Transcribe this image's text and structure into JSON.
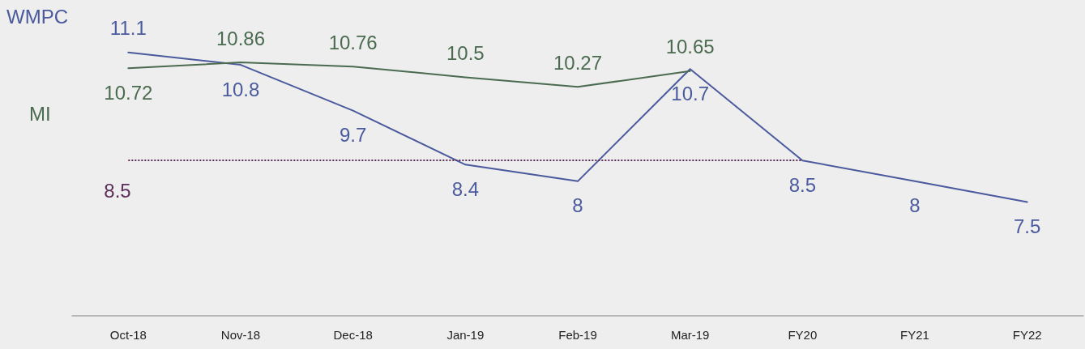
{
  "chart_data": {
    "type": "line",
    "categories": [
      "Oct-18",
      "Nov-18",
      "Dec-18",
      "Jan-19",
      "Feb-19",
      "Mar-19",
      "FY20",
      "FY21",
      "FY22"
    ],
    "series": [
      {
        "name": "WMPC",
        "color": "#4a5a9c",
        "values": [
          11.1,
          10.8,
          9.7,
          8.4,
          8,
          10.7,
          8.5,
          8,
          7.5
        ]
      },
      {
        "name": "MI",
        "color": "#4b6b50",
        "values": [
          10.72,
          10.86,
          10.76,
          10.5,
          10.27,
          10.65,
          null,
          null,
          null
        ]
      }
    ],
    "ref_lines": [
      {
        "axis": "y",
        "value": 8.5,
        "label": "8.5",
        "color": "#5b2d57",
        "line_style": "dotted"
      }
    ],
    "data_labels": true,
    "grid": false,
    "legend": false,
    "line_style": "solid"
  }
}
